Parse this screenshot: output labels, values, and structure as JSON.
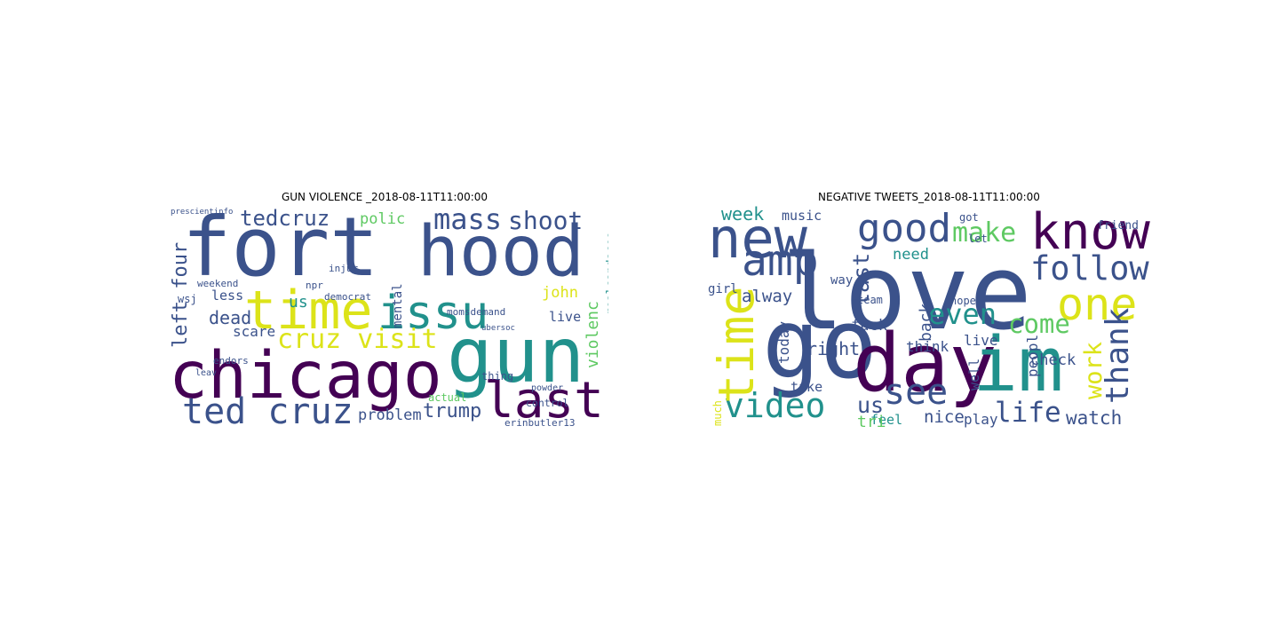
{
  "panels": [
    {
      "title": "GUN VIOLENCE _2018-08-11T11:00:00",
      "words": [
        {
          "text": "fort",
          "color": "#3b528b"
        },
        {
          "text": "hood",
          "color": "#3b528b"
        },
        {
          "text": "chicago",
          "color": "#440154"
        },
        {
          "text": "gun",
          "color": "#21918c"
        },
        {
          "text": "time",
          "color": "#dce319"
        },
        {
          "text": "issu",
          "color": "#21918c"
        },
        {
          "text": "last",
          "color": "#440154"
        },
        {
          "text": "ted cruz",
          "color": "#3b528b"
        },
        {
          "text": "cruz visit",
          "color": "#dce319"
        },
        {
          "text": "mass",
          "color": "#3b528b"
        },
        {
          "text": "shoot",
          "color": "#3b528b"
        },
        {
          "text": "tedcruz",
          "color": "#3b528b"
        },
        {
          "text": "polic",
          "color": "#5ec962"
        },
        {
          "text": "trump",
          "color": "#3b528b"
        },
        {
          "text": "problem",
          "color": "#3b528b"
        },
        {
          "text": "erinbutler13",
          "color": "#3b528b"
        },
        {
          "text": "control",
          "color": "#3b528b"
        },
        {
          "text": "momsdemand",
          "color": "#3b528b"
        },
        {
          "text": "dead",
          "color": "#3b528b"
        },
        {
          "text": "scare",
          "color": "#3b528b"
        },
        {
          "text": "less",
          "color": "#3b528b"
        },
        {
          "text": "john",
          "color": "#dce319"
        },
        {
          "text": "live",
          "color": "#3b528b"
        },
        {
          "text": "actual",
          "color": "#5ec962"
        },
        {
          "text": "left four",
          "color": "#3b528b"
        },
        {
          "text": "violenc",
          "color": "#5ec962"
        },
        {
          "text": "realcandaceo",
          "color": "#21918c"
        },
        {
          "text": "mental",
          "color": "#3b528b"
        },
        {
          "text": "us",
          "color": "#21918c"
        },
        {
          "text": "thing",
          "color": "#3b528b"
        },
        {
          "text": "endors",
          "color": "#3b528b"
        },
        {
          "text": "leav",
          "color": "#3b528b"
        },
        {
          "text": "weekend",
          "color": "#3b528b"
        },
        {
          "text": "wsj",
          "color": "#3b528b"
        },
        {
          "text": "democrat",
          "color": "#3b528b"
        },
        {
          "text": "injur",
          "color": "#3b528b"
        },
        {
          "text": "prescientinfo",
          "color": "#3b528b"
        },
        {
          "text": "npr",
          "color": "#3b528b"
        },
        {
          "text": "powder",
          "color": "#3b528b"
        },
        {
          "text": "ubersoc",
          "color": "#3b528b"
        }
      ]
    },
    {
      "title": "NEGATIVE TWEETS_2018-08-11T11:00:00",
      "words": [
        {
          "text": "love",
          "color": "#3b528b"
        },
        {
          "text": "go",
          "color": "#3b528b"
        },
        {
          "text": "day",
          "color": "#440154"
        },
        {
          "text": "im",
          "color": "#21918c"
        },
        {
          "text": "new",
          "color": "#3b528b"
        },
        {
          "text": "know",
          "color": "#440154"
        },
        {
          "text": "amp",
          "color": "#3b528b"
        },
        {
          "text": "good",
          "color": "#3b528b"
        },
        {
          "text": "one",
          "color": "#dce319"
        },
        {
          "text": "follow",
          "color": "#3b528b"
        },
        {
          "text": "make",
          "color": "#5ec962"
        },
        {
          "text": "video",
          "color": "#21918c"
        },
        {
          "text": "see",
          "color": "#3b528b"
        },
        {
          "text": "us",
          "color": "#3b528b"
        },
        {
          "text": "life",
          "color": "#3b528b"
        },
        {
          "text": "even",
          "color": "#21918c"
        },
        {
          "text": "come",
          "color": "#5ec962"
        },
        {
          "text": "thank",
          "color": "#3b528b"
        },
        {
          "text": "work",
          "color": "#dce319"
        },
        {
          "text": "time",
          "color": "#dce319"
        },
        {
          "text": "last",
          "color": "#3b528b"
        },
        {
          "text": "week",
          "color": "#21918c"
        },
        {
          "text": "music",
          "color": "#3b528b"
        },
        {
          "text": "alway",
          "color": "#3b528b"
        },
        {
          "text": "right",
          "color": "#3b528b"
        },
        {
          "text": "fuck",
          "color": "#3b528b"
        },
        {
          "text": "nice",
          "color": "#3b528b"
        },
        {
          "text": "play",
          "color": "#3b528b"
        },
        {
          "text": "watch",
          "color": "#3b528b"
        },
        {
          "text": "feel",
          "color": "#21918c"
        },
        {
          "text": "tri",
          "color": "#5ec962"
        },
        {
          "text": "need",
          "color": "#21918c"
        },
        {
          "text": "think",
          "color": "#3b528b"
        },
        {
          "text": "check",
          "color": "#3b528b"
        },
        {
          "text": "take",
          "color": "#3b528b"
        },
        {
          "text": "girl",
          "color": "#3b528b"
        },
        {
          "text": "way",
          "color": "#3b528b"
        },
        {
          "text": "got",
          "color": "#3b528b"
        },
        {
          "text": "let",
          "color": "#3b528b"
        },
        {
          "text": "live",
          "color": "#3b528b"
        },
        {
          "text": "today",
          "color": "#3b528b"
        },
        {
          "text": "peopl",
          "color": "#3b528b"
        },
        {
          "text": "back",
          "color": "#3b528b"
        },
        {
          "text": "well",
          "color": "#3b528b"
        },
        {
          "text": "friend",
          "color": "#3b528b"
        },
        {
          "text": "hope",
          "color": "#3b528b"
        },
        {
          "text": "team",
          "color": "#3b528b"
        },
        {
          "text": "much",
          "color": "#dce319"
        }
      ]
    }
  ]
}
